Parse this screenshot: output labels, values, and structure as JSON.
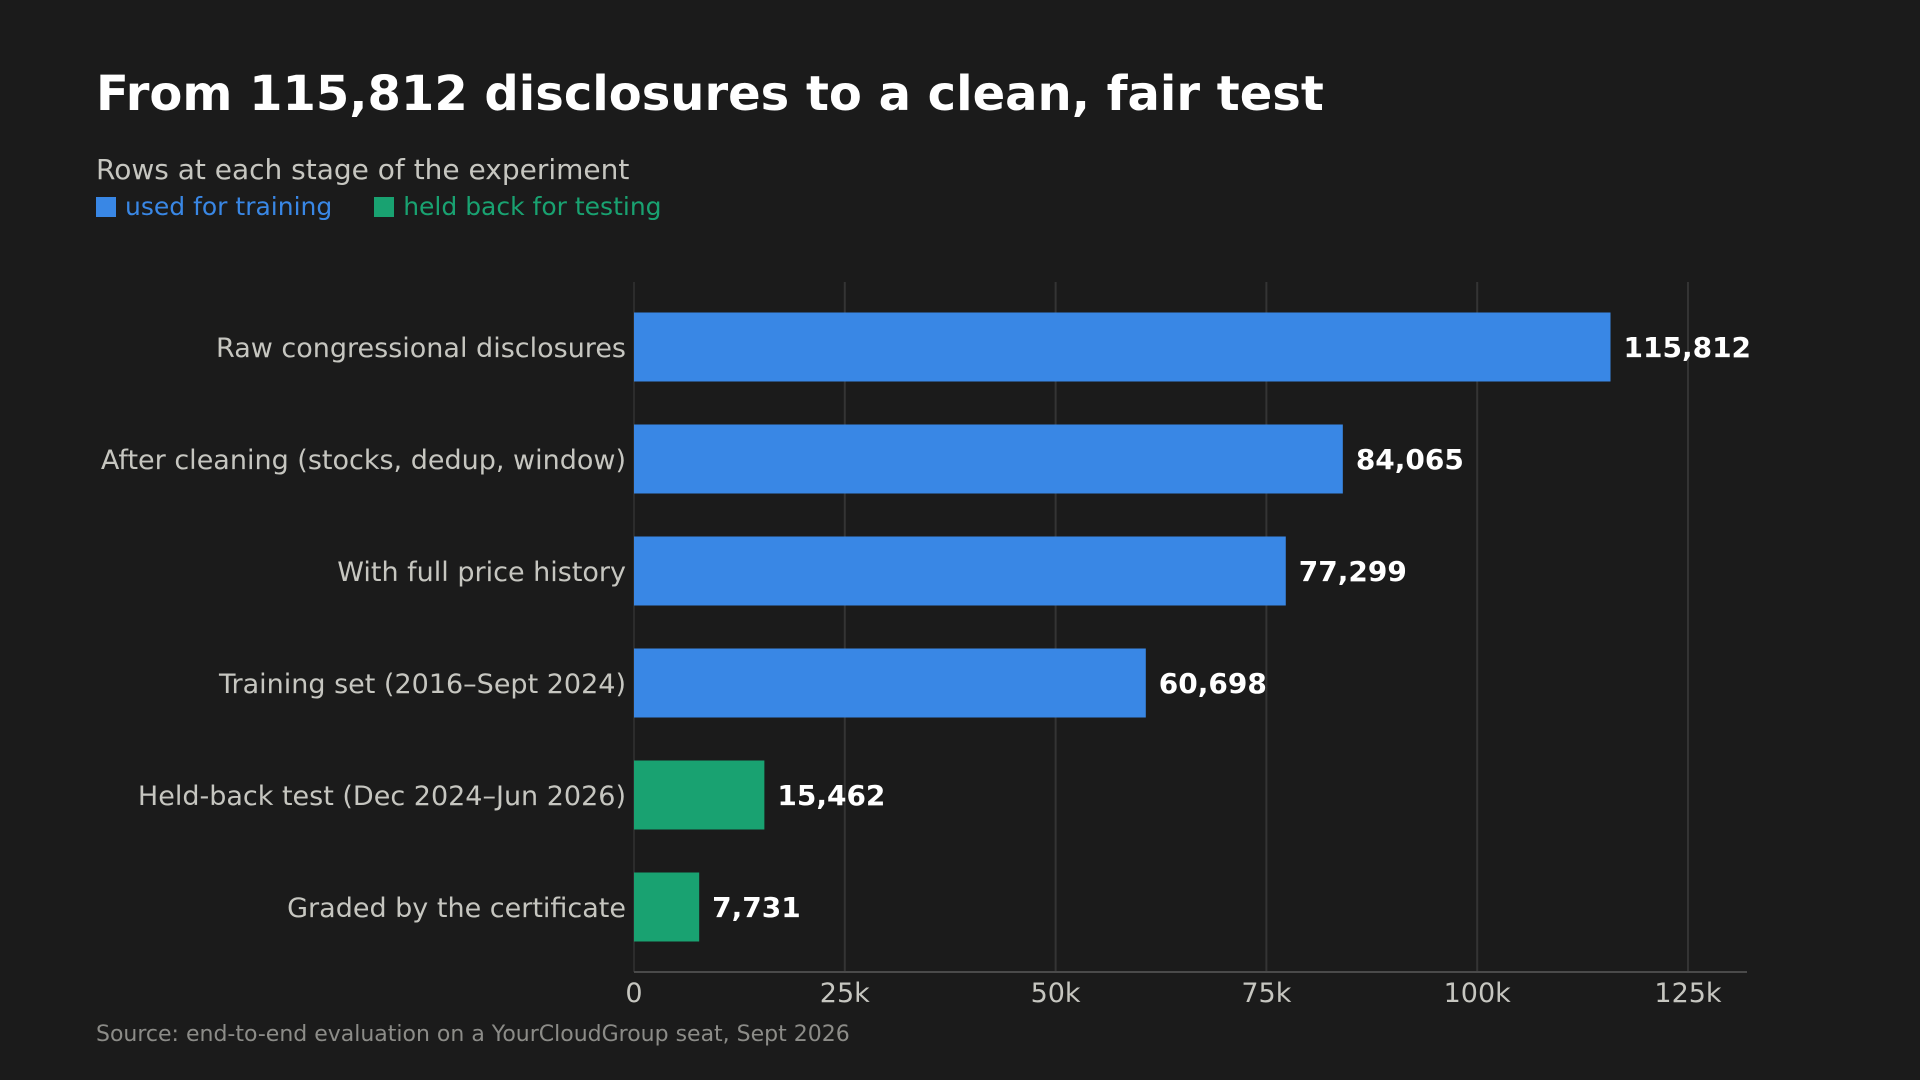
{
  "header": {
    "title": "From 115,812 disclosures to a clean, fair test",
    "subtitle": "Rows at each stage of the experiment"
  },
  "legend": [
    {
      "label": "used for training",
      "color": "#3987e5"
    },
    {
      "label": "held back for testing",
      "color": "#19a271"
    }
  ],
  "footer": {
    "source": "Source: end-to-end evaluation on a YourCloudGroup seat, Sept 2026"
  },
  "chart_data": {
    "type": "bar",
    "orientation": "horizontal",
    "categories": [
      "Raw congressional disclosures",
      "After cleaning (stocks, dedup, window)",
      "With full price history",
      "Training set (2016–Sept 2024)",
      "Held-back test (Dec 2024–Jun 2026)",
      "Graded by the certificate"
    ],
    "values": [
      115812,
      84065,
      77299,
      60698,
      15462,
      7731
    ],
    "value_labels": [
      "115,812",
      "84,065",
      "77,299",
      "60,698",
      "15,462",
      "7,731"
    ],
    "groups": [
      "used for training",
      "used for training",
      "used for training",
      "used for training",
      "held back for testing",
      "held back for testing"
    ],
    "colors": [
      "#3987e5",
      "#3987e5",
      "#3987e5",
      "#3987e5",
      "#19a271",
      "#19a271"
    ],
    "xlim": [
      0,
      132000
    ],
    "xticks": [
      0,
      25000,
      50000,
      75000,
      100000,
      125000
    ],
    "xtick_labels": [
      "0",
      "25k",
      "50k",
      "75k",
      "100k",
      "125k"
    ],
    "xlabel": "",
    "ylabel": "",
    "grid": "vertical",
    "legend_position": "top-left"
  }
}
